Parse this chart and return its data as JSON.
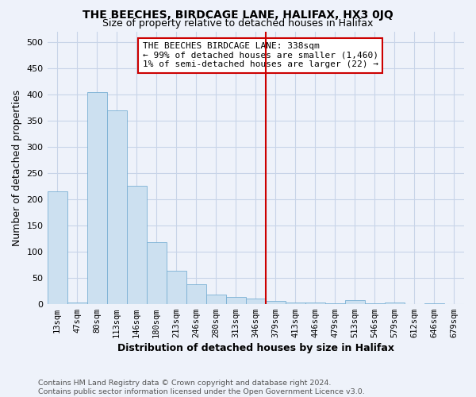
{
  "title": "THE BEECHES, BIRDCAGE LANE, HALIFAX, HX3 0JQ",
  "subtitle": "Size of property relative to detached houses in Halifax",
  "xlabel": "Distribution of detached houses by size in Halifax",
  "ylabel": "Number of detached properties",
  "annotation_line1": "THE BEECHES BIRDCAGE LANE: 338sqm",
  "annotation_line2": "← 99% of detached houses are smaller (1,460)",
  "annotation_line3": "1% of semi-detached houses are larger (22) →",
  "footnote1": "Contains HM Land Registry data © Crown copyright and database right 2024.",
  "footnote2": "Contains public sector information licensed under the Open Government Licence v3.0.",
  "bar_color": "#cce0f0",
  "bar_edge_color": "#7ab0d4",
  "marker_line_color": "#cc0000",
  "categories": [
    "13sqm",
    "47sqm",
    "80sqm",
    "113sqm",
    "146sqm",
    "180sqm",
    "213sqm",
    "246sqm",
    "280sqm",
    "313sqm",
    "346sqm",
    "379sqm",
    "413sqm",
    "446sqm",
    "479sqm",
    "513sqm",
    "546sqm",
    "579sqm",
    "612sqm",
    "646sqm",
    "679sqm"
  ],
  "values": [
    215,
    3,
    405,
    370,
    225,
    118,
    63,
    37,
    17,
    13,
    10,
    5,
    3,
    2,
    1,
    7,
    1,
    2,
    0,
    1,
    0
  ],
  "ylim": [
    0,
    520
  ],
  "yticks": [
    0,
    50,
    100,
    150,
    200,
    250,
    300,
    350,
    400,
    450,
    500
  ],
  "marker_bar_index": 10,
  "background_color": "#eef2fa",
  "grid_color": "#c8d4e8"
}
